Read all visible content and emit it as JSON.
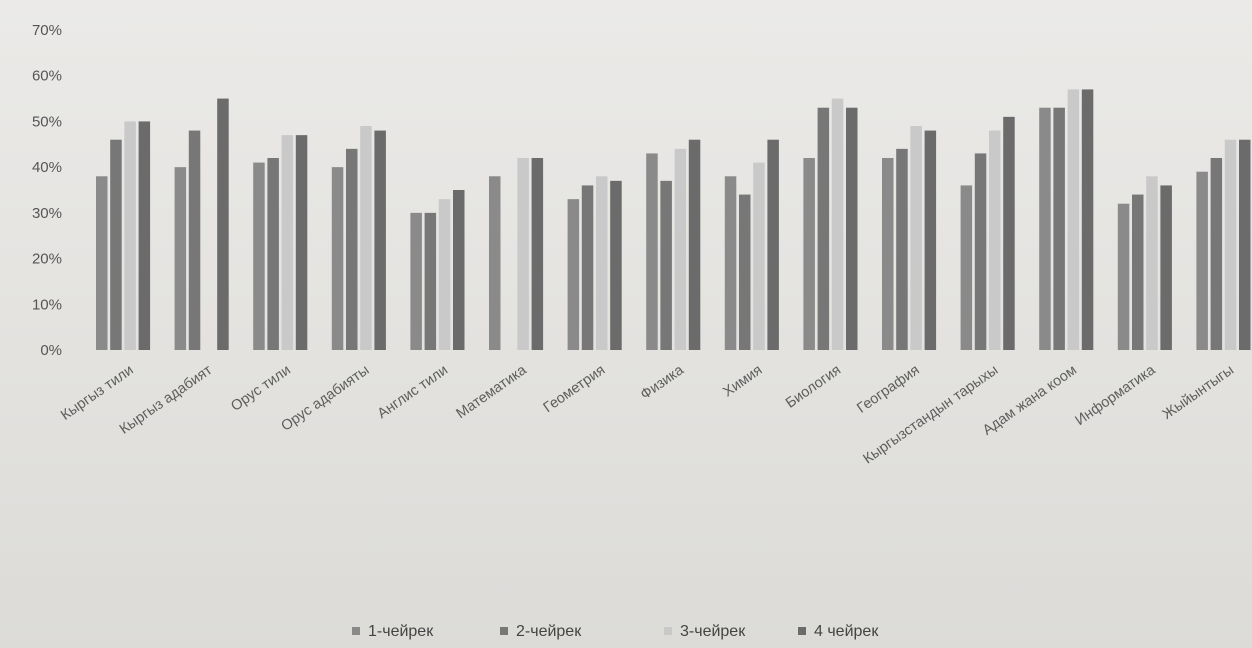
{
  "chart_data": {
    "type": "bar",
    "ylim": [
      0,
      70
    ],
    "yticks": [
      "0%",
      "10%",
      "20%",
      "30%",
      "40%",
      "50%",
      "60%",
      "70%"
    ],
    "grid": false,
    "legend_position": "bottom",
    "categories": [
      "Кыргыз тили",
      "Кыргыз адабият",
      "Орус тили",
      "Орус адабияты",
      "Англис тили",
      "Математика",
      "Геометрия",
      "Физика",
      "Химия",
      "Биология",
      "География",
      "Кыргызстандын тарыхы",
      "Адам жана коом",
      "Информатика",
      "Жыйынтыгы"
    ],
    "series": [
      {
        "name": "1-чейрек",
        "color": "#8a8a8a",
        "values": [
          38,
          40,
          41,
          40,
          30,
          38,
          33,
          43,
          38,
          42,
          42,
          36,
          53,
          32,
          39
        ]
      },
      {
        "name": "2-чейрек",
        "color": "#777777",
        "values": [
          46,
          48,
          42,
          44,
          30,
          0,
          36,
          37,
          34,
          53,
          44,
          43,
          53,
          34,
          42
        ]
      },
      {
        "name": "3-чейрек",
        "color": "#c9c9c9",
        "values": [
          50,
          0,
          47,
          49,
          33,
          42,
          38,
          44,
          41,
          55,
          49,
          48,
          57,
          38,
          46
        ]
      },
      {
        "name": "4 чейрек",
        "color": "#6b6b6b",
        "values": [
          50,
          55,
          47,
          48,
          35,
          42,
          37,
          46,
          46,
          53,
          48,
          51,
          57,
          36,
          46
        ]
      }
    ]
  }
}
